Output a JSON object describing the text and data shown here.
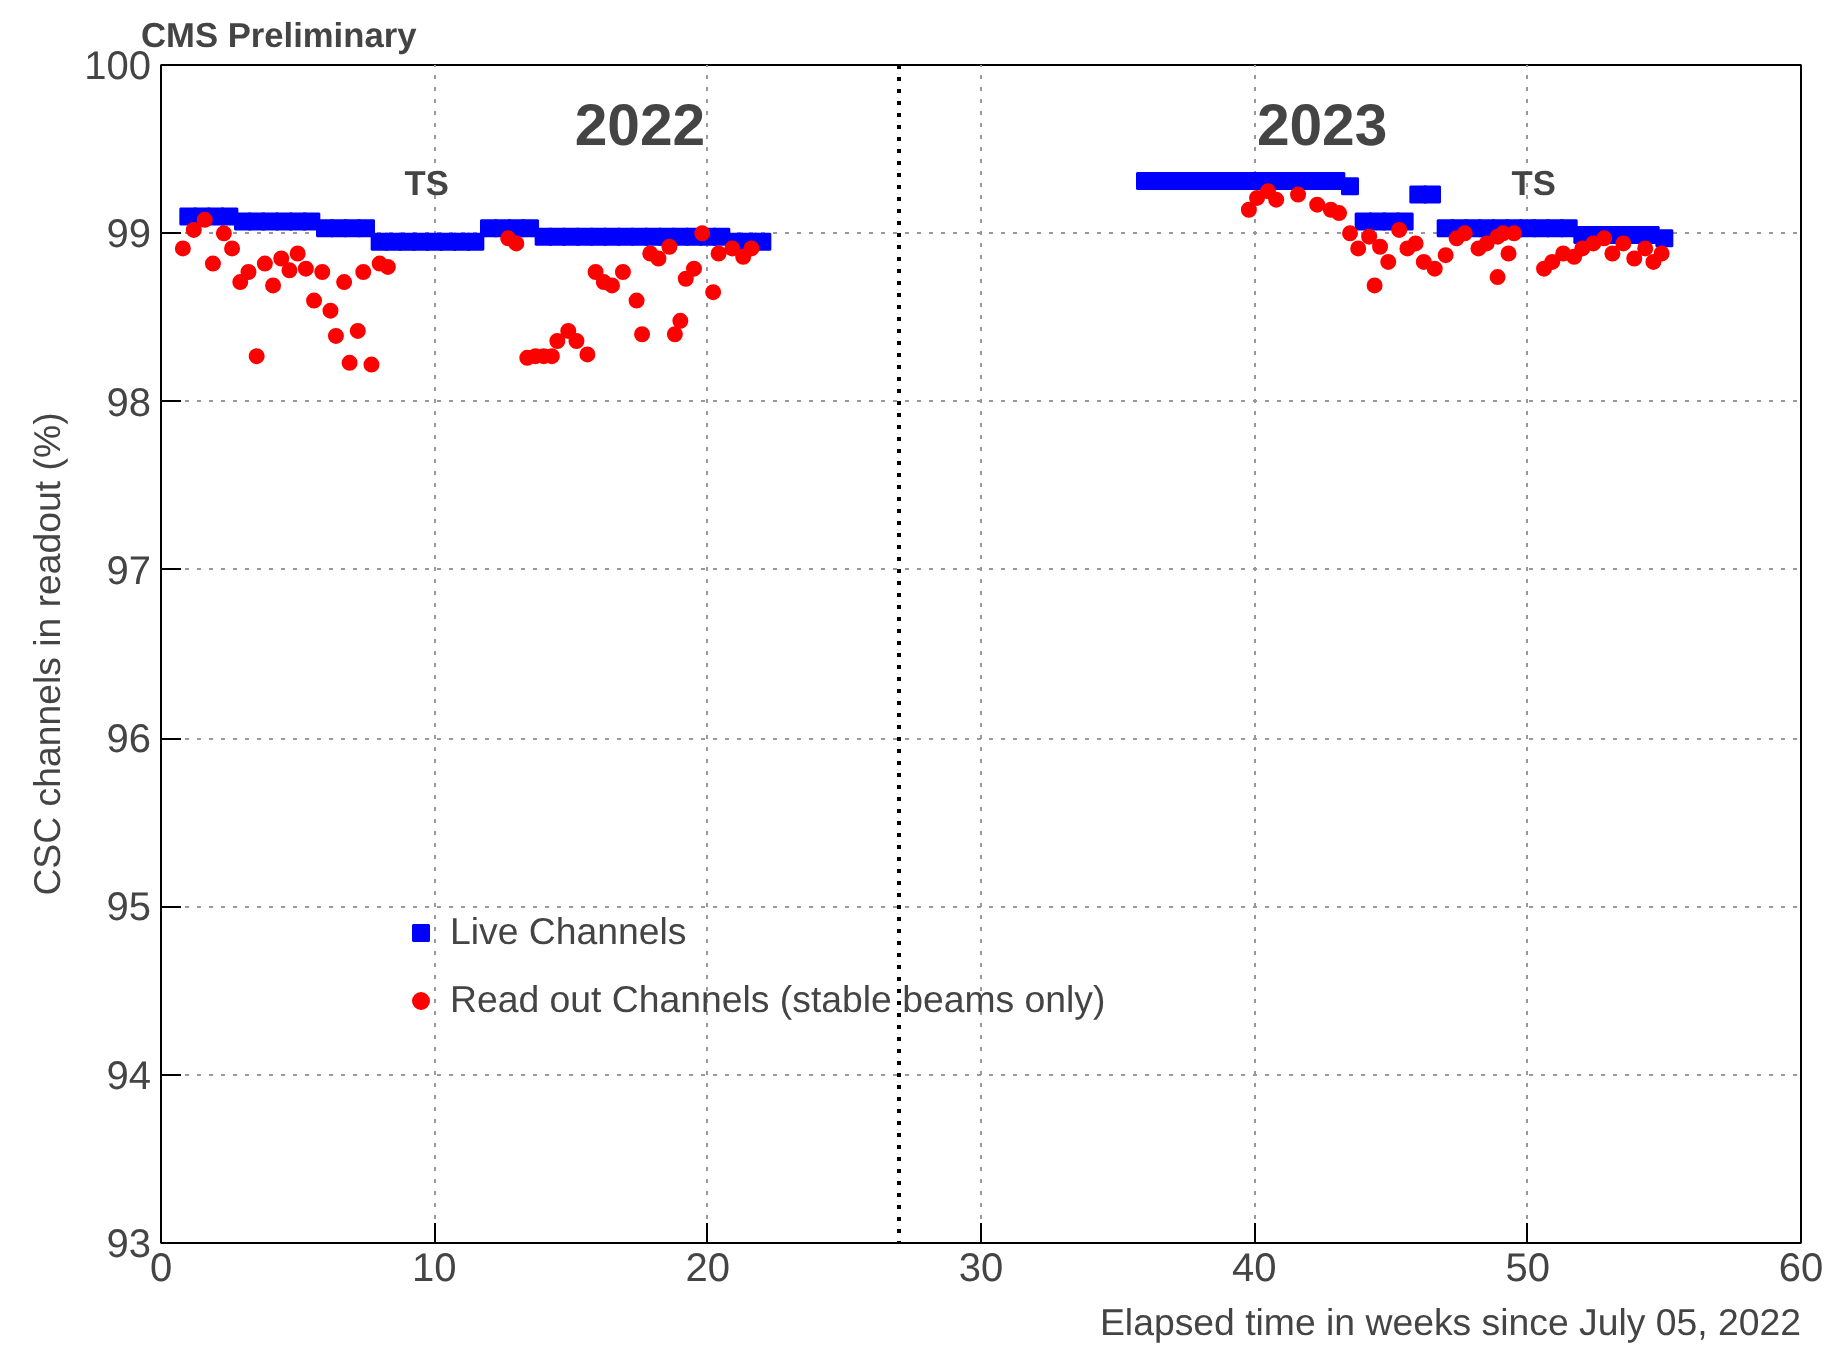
{
  "chart_data": {
    "type": "scatter",
    "title": "CMS Preliminary",
    "xlabel": "Elapsed time in weeks since July 05, 2022",
    "ylabel": "CSC channels in readout (%)",
    "xlim": [
      0,
      60
    ],
    "ylim": [
      93,
      100
    ],
    "xticks": [
      0,
      10,
      20,
      30,
      40,
      50,
      60
    ],
    "yticks": [
      93,
      94,
      95,
      96,
      97,
      98,
      99,
      100
    ],
    "grid": true,
    "legend": "bottom left",
    "series": [
      {
        "name": "Live Channels",
        "color": "#0000ff",
        "marker": "square",
        "x": [
          1,
          1.5,
          2,
          2.5,
          3,
          3.5,
          4,
          4.5,
          5,
          5.5,
          6,
          6.5,
          7,
          7.5,
          8,
          8.5,
          9,
          9.5,
          10,
          10.5,
          11,
          11.5,
          12,
          12.5,
          13,
          13.5,
          14,
          14.5,
          15,
          15.5,
          16,
          16.5,
          17,
          17.5,
          18,
          18.5,
          19,
          19.5,
          20,
          20.5,
          21,
          21.5,
          22,
          36,
          36.5,
          37,
          37.5,
          38,
          38.5,
          39,
          39.5,
          40,
          40.5,
          41,
          41.5,
          42,
          42.5,
          43,
          43.5,
          44,
          44.5,
          45,
          45.5,
          46,
          46.5,
          47,
          47.5,
          48,
          48.5,
          49,
          49.5,
          50,
          50.5,
          51,
          51.5,
          52,
          52.5,
          53,
          53.5,
          54,
          54.5,
          55
        ],
        "values": [
          99.1,
          99.1,
          99.1,
          99.1,
          99.07,
          99.07,
          99.07,
          99.07,
          99.07,
          99.07,
          99.03,
          99.03,
          99.03,
          99.03,
          98.95,
          98.95,
          98.95,
          98.95,
          98.95,
          98.95,
          98.95,
          98.95,
          99.03,
          99.03,
          99.03,
          99.03,
          98.98,
          98.98,
          98.98,
          98.98,
          98.98,
          98.98,
          98.98,
          98.98,
          98.98,
          98.98,
          98.98,
          98.98,
          98.98,
          98.98,
          98.95,
          98.95,
          98.95,
          99.31,
          99.31,
          99.31,
          99.31,
          99.31,
          99.31,
          99.31,
          99.31,
          99.31,
          99.31,
          99.31,
          99.31,
          99.31,
          99.31,
          99.31,
          99.28,
          99.07,
          99.07,
          99.07,
          99.07,
          99.23,
          99.23,
          99.03,
          99.03,
          99.03,
          99.03,
          99.03,
          99.03,
          99.03,
          99.03,
          99.03,
          99.03,
          98.99,
          98.99,
          98.99,
          98.99,
          98.99,
          98.99,
          98.97
        ]
      },
      {
        "name": "Read out Channels (stable beams only)",
        "color": "#ff0000",
        "marker": "circle",
        "x": [
          0.8,
          1.2,
          1.6,
          1.9,
          2.3,
          2.6,
          2.9,
          3.2,
          3.5,
          3.8,
          4.1,
          4.4,
          4.7,
          5.0,
          5.3,
          5.6,
          5.9,
          6.2,
          6.4,
          6.7,
          6.9,
          7.2,
          7.4,
          7.7,
          8.0,
          8.3,
          12.7,
          13.0,
          13.4,
          13.7,
          14.0,
          14.3,
          14.5,
          14.9,
          15.2,
          15.6,
          15.9,
          16.2,
          16.5,
          16.9,
          17.4,
          17.6,
          17.9,
          18.2,
          18.6,
          18.8,
          19.0,
          19.2,
          19.5,
          19.8,
          20.2,
          20.4,
          20.9,
          21.3,
          21.6,
          39.8,
          40.1,
          40.5,
          40.8,
          41.6,
          42.3,
          42.8,
          43.1,
          43.5,
          43.8,
          44.2,
          44.4,
          44.6,
          44.9,
          45.3,
          45.6,
          45.9,
          46.2,
          46.6,
          47.0,
          47.4,
          47.7,
          48.2,
          48.5,
          48.9,
          48.9,
          49.1,
          49.3,
          49.5,
          50.6,
          50.9,
          51.3,
          51.7,
          52.0,
          52.4,
          52.8,
          53.1,
          53.5,
          53.9,
          54.3,
          54.6,
          54.9
        ],
        "values": [
          98.91,
          99.02,
          99.08,
          98.82,
          99.0,
          98.91,
          98.71,
          98.77,
          98.27,
          98.82,
          98.69,
          98.85,
          98.78,
          98.88,
          98.79,
          98.6,
          98.77,
          98.54,
          98.39,
          98.71,
          98.23,
          98.42,
          98.77,
          98.22,
          98.82,
          98.8,
          98.97,
          98.94,
          98.26,
          98.27,
          98.27,
          98.27,
          98.36,
          98.42,
          98.36,
          98.28,
          98.77,
          98.71,
          98.69,
          98.77,
          98.6,
          98.4,
          98.88,
          98.85,
          98.92,
          98.4,
          98.48,
          98.73,
          98.79,
          99.0,
          98.65,
          98.88,
          98.91,
          98.86,
          98.91,
          99.14,
          99.21,
          99.25,
          99.2,
          99.23,
          99.17,
          99.14,
          99.12,
          99.0,
          98.91,
          98.98,
          98.69,
          98.92,
          98.83,
          99.02,
          98.91,
          98.94,
          98.83,
          98.79,
          98.87,
          98.97,
          99.0,
          98.91,
          98.94,
          98.98,
          98.74,
          99.0,
          98.88,
          99.0,
          98.79,
          98.83,
          98.88,
          98.86,
          98.91,
          98.94,
          98.97,
          98.88,
          98.94,
          98.85,
          98.91,
          98.83,
          98.88
        ]
      }
    ],
    "ref_lines": [
      {
        "axis": "x",
        "value": 27,
        "color": "#000000",
        "line_style": "dotted"
      }
    ],
    "annotations": [
      "2022",
      "2023",
      "TS",
      "TS"
    ]
  }
}
